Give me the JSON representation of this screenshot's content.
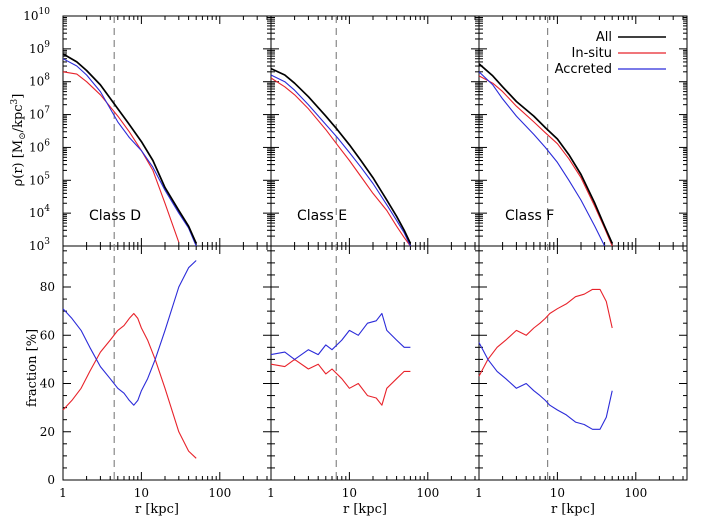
{
  "chart_data": {
    "type": "line",
    "x_axis": {
      "label": "r [kpc]",
      "scale": "log",
      "range": [
        1,
        450
      ],
      "tick_labels": [
        "1",
        "10",
        "100"
      ]
    },
    "density_axis": {
      "label_prefix": "ρ(r) [M",
      "label_sun": "⊙",
      "label_mid": "/kpc",
      "label_exp": "3",
      "label_suffix": "]",
      "scale": "log",
      "range": [
        1000,
        10000000000
      ],
      "tick_labels": [
        {
          "base": "10",
          "exp": "3"
        },
        {
          "base": "10",
          "exp": "4"
        },
        {
          "base": "10",
          "exp": "5"
        },
        {
          "base": "10",
          "exp": "6"
        },
        {
          "base": "10",
          "exp": "7"
        },
        {
          "base": "10",
          "exp": "8"
        },
        {
          "base": "10",
          "exp": "9"
        },
        {
          "base": "10",
          "exp": "10"
        }
      ]
    },
    "fraction_axis": {
      "label": "fraction [%]",
      "range": [
        0,
        97
      ],
      "tick_labels": [
        "0",
        "20",
        "40",
        "60",
        "80"
      ]
    },
    "legend": {
      "position": "top-right",
      "entries": [
        {
          "label": "All",
          "color": "#000000"
        },
        {
          "label": "In-situ",
          "color": "#e8232b"
        },
        {
          "label": "Accreted",
          "color": "#2b2bd9"
        }
      ]
    },
    "colors": {
      "all": "#000000",
      "insitu": "#e8232b",
      "accreted": "#2b2bd9",
      "vline": "#888888"
    },
    "panels": [
      {
        "class_label": "Class D",
        "vline_r": 4.5,
        "density": {
          "all": {
            "r": [
              1,
              1.5,
              2,
              3,
              5,
              7,
              10,
              14,
              20,
              30,
              40,
              50
            ],
            "rho": [
              700000000.0,
              400000000.0,
              220000000.0,
              80000000.0,
              15000000.0,
              5000000.0,
              1500000.0,
              400000.0,
              60000.0,
              12000.0,
              4000.0,
              1200.0
            ]
          },
          "insitu": {
            "r": [
              1,
              1.5,
              2,
              3,
              5,
              7,
              10,
              14,
              20,
              30
            ],
            "rho": [
              200000000.0,
              170000000.0,
              100000000.0,
              40000000.0,
              9000000.0,
              3000000.0,
              800000.0,
              200000.0,
              20000.0,
              1300.0
            ]
          },
          "accreted": {
            "r": [
              1,
              1.5,
              2,
              3,
              5,
              7,
              10,
              14,
              20,
              30,
              40,
              50
            ],
            "rho": [
              500000000.0,
              300000000.0,
              160000000.0,
              50000000.0,
              6000000.0,
              2000000.0,
              800000.0,
              250000.0,
              50000.0,
              10000.0,
              3500.0,
              1000.0
            ]
          }
        },
        "fraction": {
          "insitu": {
            "r": [
              1,
              1.3,
              1.7,
              2.2,
              3,
              4,
              5,
              6,
              7,
              8,
              9,
              10,
              12,
              15,
              20,
              30,
              40,
              50
            ],
            "pct": [
              29,
              33,
              38,
              45,
              53,
              58,
              62,
              64,
              67,
              69,
              67,
              63,
              58,
              50,
              38,
              20,
              12,
              9
            ]
          },
          "accreted": {
            "r": [
              1,
              1.3,
              1.7,
              2.2,
              3,
              4,
              5,
              6,
              7,
              8,
              9,
              10,
              12,
              15,
              20,
              30,
              40,
              50
            ],
            "pct": [
              71,
              67,
              62,
              55,
              47,
              42,
              38,
              36,
              33,
              31,
              33,
              37,
              42,
              50,
              62,
              80,
              88,
              91
            ]
          }
        }
      },
      {
        "class_label": "Class E",
        "vline_r": 6.8,
        "density": {
          "all": {
            "r": [
              1,
              1.5,
              2,
              3,
              5,
              7,
              10,
              14,
              20,
              30,
              40,
              50,
              60
            ],
            "rho": [
              250000000.0,
              160000000.0,
              90000000.0,
              35000000.0,
              9000000.0,
              3500000.0,
              1200000.0,
              400000.0,
              120000.0,
              25000.0,
              8000.0,
              3000.0,
              1200.0
            ]
          },
          "insitu": {
            "r": [
              1,
              1.5,
              2,
              3,
              5,
              7,
              10,
              14,
              20,
              30,
              40,
              50,
              60
            ],
            "rho": [
              130000000.0,
              70000000.0,
              40000000.0,
              15000000.0,
              3500000.0,
              1200000.0,
              400000.0,
              130000.0,
              40000.0,
              12000.0,
              4000.0,
              1800.0,
              1000.0
            ]
          },
          "accreted": {
            "r": [
              1,
              1.5,
              2,
              3,
              5,
              7,
              10,
              14,
              20,
              30,
              40,
              50,
              60
            ],
            "rho": [
              160000000.0,
              100000000.0,
              55000000.0,
              20000000.0,
              5000000.0,
              2000000.0,
              700000.0,
              250000.0,
              80000.0,
              18000.0,
              6000.0,
              2500.0,
              1000.0
            ]
          }
        },
        "fraction": {
          "insitu": {
            "r": [
              1,
              1.5,
              2,
              3,
              4,
              5,
              6,
              8,
              10,
              13,
              17,
              22,
              26,
              30,
              40,
              50,
              60
            ],
            "pct": [
              48,
              47,
              50,
              46,
              48,
              44,
              46,
              42,
              38,
              40,
              35,
              34,
              31,
              38,
              42,
              45,
              45
            ]
          },
          "accreted": {
            "r": [
              1,
              1.5,
              2,
              3,
              4,
              5,
              6,
              8,
              10,
              13,
              17,
              22,
              26,
              30,
              40,
              50,
              60
            ],
            "pct": [
              52,
              53,
              50,
              54,
              52,
              56,
              54,
              58,
              62,
              60,
              65,
              66,
              69,
              62,
              58,
              55,
              55
            ]
          }
        }
      },
      {
        "class_label": "Class F",
        "vline_r": 7.5,
        "density": {
          "all": {
            "r": [
              1,
              1.5,
              2,
              3,
              5,
              7,
              10,
              14,
              20,
              30,
              40,
              50
            ],
            "rho": [
              350000000.0,
              150000000.0,
              70000000.0,
              25000000.0,
              9000000.0,
              4000000.0,
              1800000.0,
              600000.0,
              150000.0,
              20000.0,
              4000.0,
              1200.0
            ]
          },
          "insitu": {
            "r": [
              1,
              1.5,
              2,
              3,
              5,
              7,
              10,
              14,
              20,
              30,
              40,
              50
            ],
            "rho": [
              150000000.0,
              90000000.0,
              50000000.0,
              18000000.0,
              6000000.0,
              2800000.0,
              1300000.0,
              450000.0,
              120000.0,
              16000.0,
              3500.0,
              1000.0
            ]
          },
          "accreted": {
            "r": [
              1,
              1.5,
              2,
              3,
              5,
              7,
              10,
              14,
              20,
              30,
              40
            ],
            "rho": [
              200000000.0,
              80000000.0,
              30000000.0,
              9000000.0,
              2500000.0,
              1000000.0,
              350000.0,
              100000.0,
              25000.0,
              4000.0,
              1000.0
            ]
          }
        },
        "fraction": {
          "insitu": {
            "r": [
              1,
              1.3,
              1.7,
              2.2,
              3,
              4,
              5,
              6,
              7,
              8,
              10,
              13,
              17,
              22,
              28,
              35,
              42,
              50
            ],
            "pct": [
              43,
              50,
              55,
              58,
              62,
              60,
              63,
              65,
              67,
              69,
              71,
              73,
              76,
              77,
              79,
              79,
              74,
              63
            ]
          },
          "accreted": {
            "r": [
              1,
              1.3,
              1.7,
              2.2,
              3,
              4,
              5,
              6,
              7,
              8,
              10,
              13,
              17,
              22,
              28,
              35,
              42,
              50
            ],
            "pct": [
              57,
              50,
              45,
              42,
              38,
              40,
              37,
              35,
              33,
              31,
              29,
              27,
              24,
              23,
              21,
              21,
              26,
              37
            ]
          }
        }
      }
    ]
  }
}
